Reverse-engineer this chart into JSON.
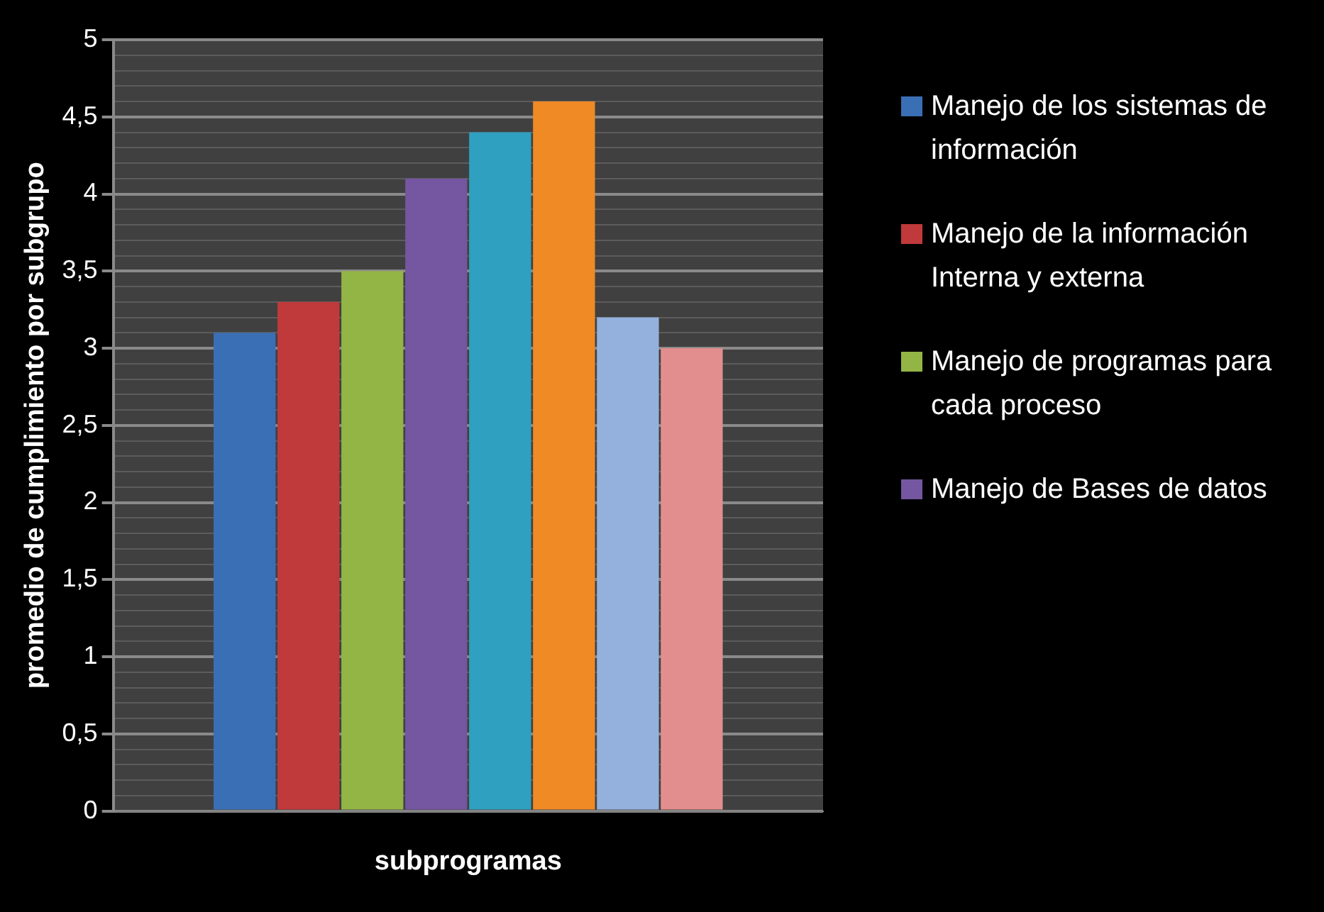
{
  "chart_data": {
    "type": "bar",
    "categories": [
      null
    ],
    "xlabel": "subprogramas",
    "ylabel": "promedio de cumplimiento por subgrupo",
    "series": [
      {
        "name": "Manejo de los sistemas de información",
        "color": "#3a6fb5",
        "values": [
          3.1
        ]
      },
      {
        "name": "Manejo de la información Interna y externa",
        "color": "#c0393b",
        "values": [
          3.3
        ]
      },
      {
        "name": "Manejo de programas para cada proceso",
        "color": "#93b545",
        "values": [
          3.5
        ]
      },
      {
        "name": "Manejo de Bases de datos",
        "color": "#7556a0",
        "values": [
          4.1
        ]
      },
      {
        "color": "#2fa0bf",
        "values": [
          4.4
        ]
      },
      {
        "color": "#f08a25",
        "values": [
          4.6
        ]
      },
      {
        "color": "#94b1dd",
        "values": [
          3.2
        ]
      },
      {
        "color": "#e38e8e",
        "values": [
          3.0
        ]
      }
    ],
    "ylim": [
      0,
      5
    ],
    "yticks": [
      0,
      {
        "value": 0.1,
        "label": null
      },
      {
        "value": 0.2,
        "label": null
      },
      {
        "value": 0.3,
        "label": null
      },
      {
        "value": 0.4,
        "label": null
      },
      {
        "value": 0.5,
        "label": "0,5"
      },
      {
        "value": 0.6,
        "label": null
      },
      {
        "value": 0.7,
        "label": null
      },
      {
        "value": 0.8,
        "label": null
      },
      {
        "value": 0.9,
        "label": null
      },
      1,
      {
        "value": 1.1,
        "label": null
      },
      {
        "value": 1.2,
        "label": null
      },
      {
        "value": 1.3,
        "label": null
      },
      {
        "value": 1.4,
        "label": null
      },
      {
        "value": 1.5,
        "label": "1,5"
      },
      {
        "value": 1.6,
        "label": null
      },
      {
        "value": 1.7,
        "label": null
      },
      {
        "value": 1.8,
        "label": null
      },
      {
        "value": 1.9,
        "label": null
      },
      2,
      {
        "value": 2.1,
        "label": null
      },
      {
        "value": 2.2,
        "label": null
      },
      {
        "value": 2.3,
        "label": null
      },
      {
        "value": 2.4,
        "label": null
      },
      {
        "value": 2.5,
        "label": "2,5"
      },
      {
        "value": 2.6,
        "label": null
      },
      {
        "value": 2.7,
        "label": null
      },
      {
        "value": 2.8,
        "label": null
      },
      {
        "value": 2.9,
        "label": null
      },
      3,
      {
        "value": 3.1,
        "label": null
      },
      {
        "value": 3.2,
        "label": null
      },
      {
        "value": 3.3,
        "label": null
      },
      {
        "value": 3.4,
        "label": null
      },
      {
        "value": 3.5,
        "label": "3,5"
      },
      {
        "value": 3.6,
        "label": null
      },
      {
        "value": 3.7,
        "label": null
      },
      {
        "value": 3.8,
        "label": null
      },
      {
        "value": 3.9,
        "label": null
      },
      4,
      {
        "value": 4.1,
        "label": null
      },
      {
        "value": 4.2,
        "label": null
      },
      {
        "value": 4.3,
        "label": null
      },
      {
        "value": 4.4,
        "label": null
      },
      {
        "value": 4.5,
        "label": "4,5"
      },
      {
        "value": 4.6,
        "label": null
      },
      {
        "value": 4.7,
        "label": null
      },
      {
        "value": 4.8,
        "label": null
      },
      {
        "value": 4.9,
        "label": null
      },
      5
    ],
    "grid": "y",
    "legend": "right"
  }
}
